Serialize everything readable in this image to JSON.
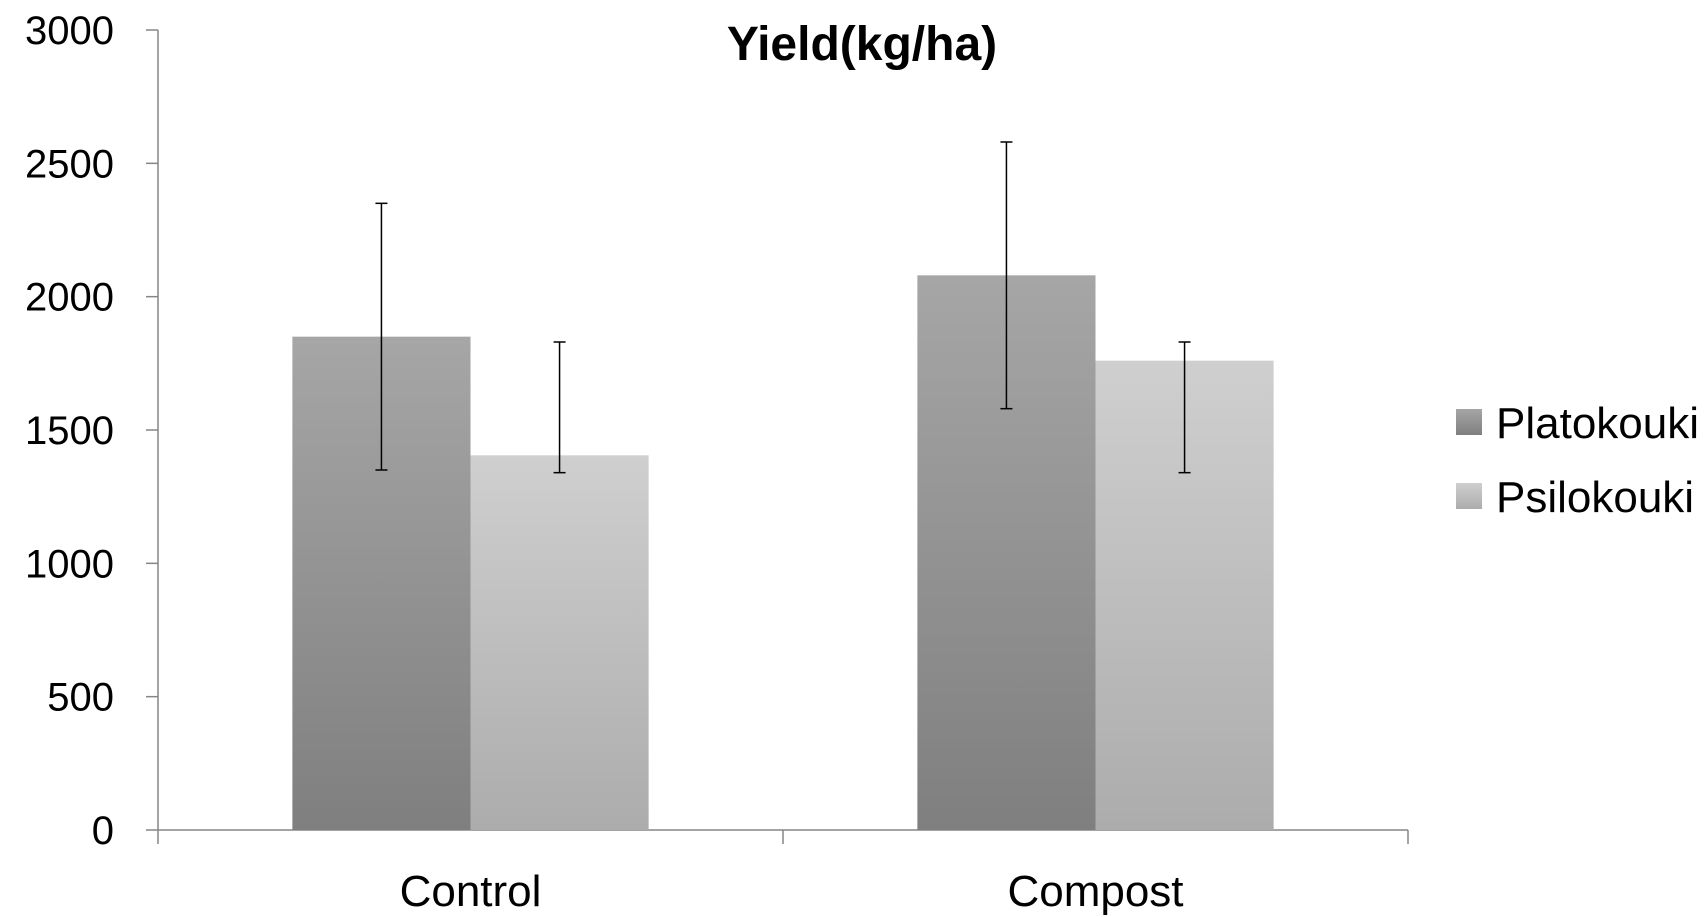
{
  "chart_data": {
    "type": "bar",
    "title": "Yield(kg/ha)",
    "xlabel": "",
    "ylabel": "",
    "categories": [
      "Control",
      "Compost"
    ],
    "series": [
      {
        "name": "Platokouki",
        "values": [
          1850,
          2080
        ],
        "error_low": [
          1350,
          1580
        ],
        "error_high": [
          2350,
          2580
        ],
        "color_top": "#a6a6a6",
        "color_bottom": "#7f7f7f"
      },
      {
        "name": "Psilokouki",
        "values": [
          1405,
          1760
        ],
        "error_low": [
          1340,
          1340
        ],
        "error_high": [
          1830,
          1830
        ],
        "color_top": "#cfcfcf",
        "color_bottom": "#acacac"
      }
    ],
    "ylim": [
      0,
      3000
    ],
    "yticks": [
      "0",
      "500",
      "1000",
      "1500",
      "2000",
      "2500",
      "3000"
    ],
    "grid": false,
    "legend_position": "right"
  }
}
